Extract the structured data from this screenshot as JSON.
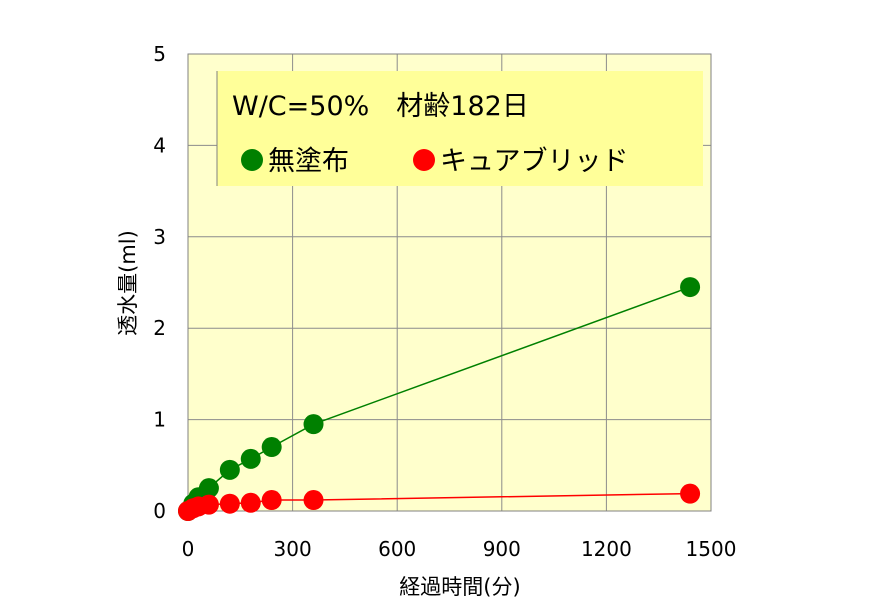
{
  "chart_data": {
    "type": "line",
    "xlabel": "経過時間(分)",
    "ylabel": "透水量(ml)",
    "xlim": [
      0,
      1500
    ],
    "ylim": [
      0,
      5
    ],
    "xticks": [
      "0",
      "300",
      "600",
      "900",
      "1200",
      "1500"
    ],
    "yticks": [
      "0",
      "1",
      "2",
      "3",
      "4",
      "5"
    ],
    "grid": true,
    "plot_background": "#ffffcc",
    "annotation": "W/C=50%　材齢182日",
    "legend_position": "top-left",
    "series": [
      {
        "name": "無塗布",
        "color": "#008000",
        "x": [
          0,
          15,
          30,
          60,
          120,
          180,
          240,
          360,
          1440
        ],
        "y": [
          0,
          0.08,
          0.15,
          0.25,
          0.45,
          0.57,
          0.7,
          0.95,
          2.45
        ]
      },
      {
        "name": "キュアブリッド",
        "color": "#ff0000",
        "x": [
          0,
          15,
          30,
          60,
          120,
          180,
          240,
          360,
          1440
        ],
        "y": [
          0,
          0.03,
          0.05,
          0.07,
          0.08,
          0.09,
          0.12,
          0.12,
          0.19
        ]
      }
    ]
  }
}
